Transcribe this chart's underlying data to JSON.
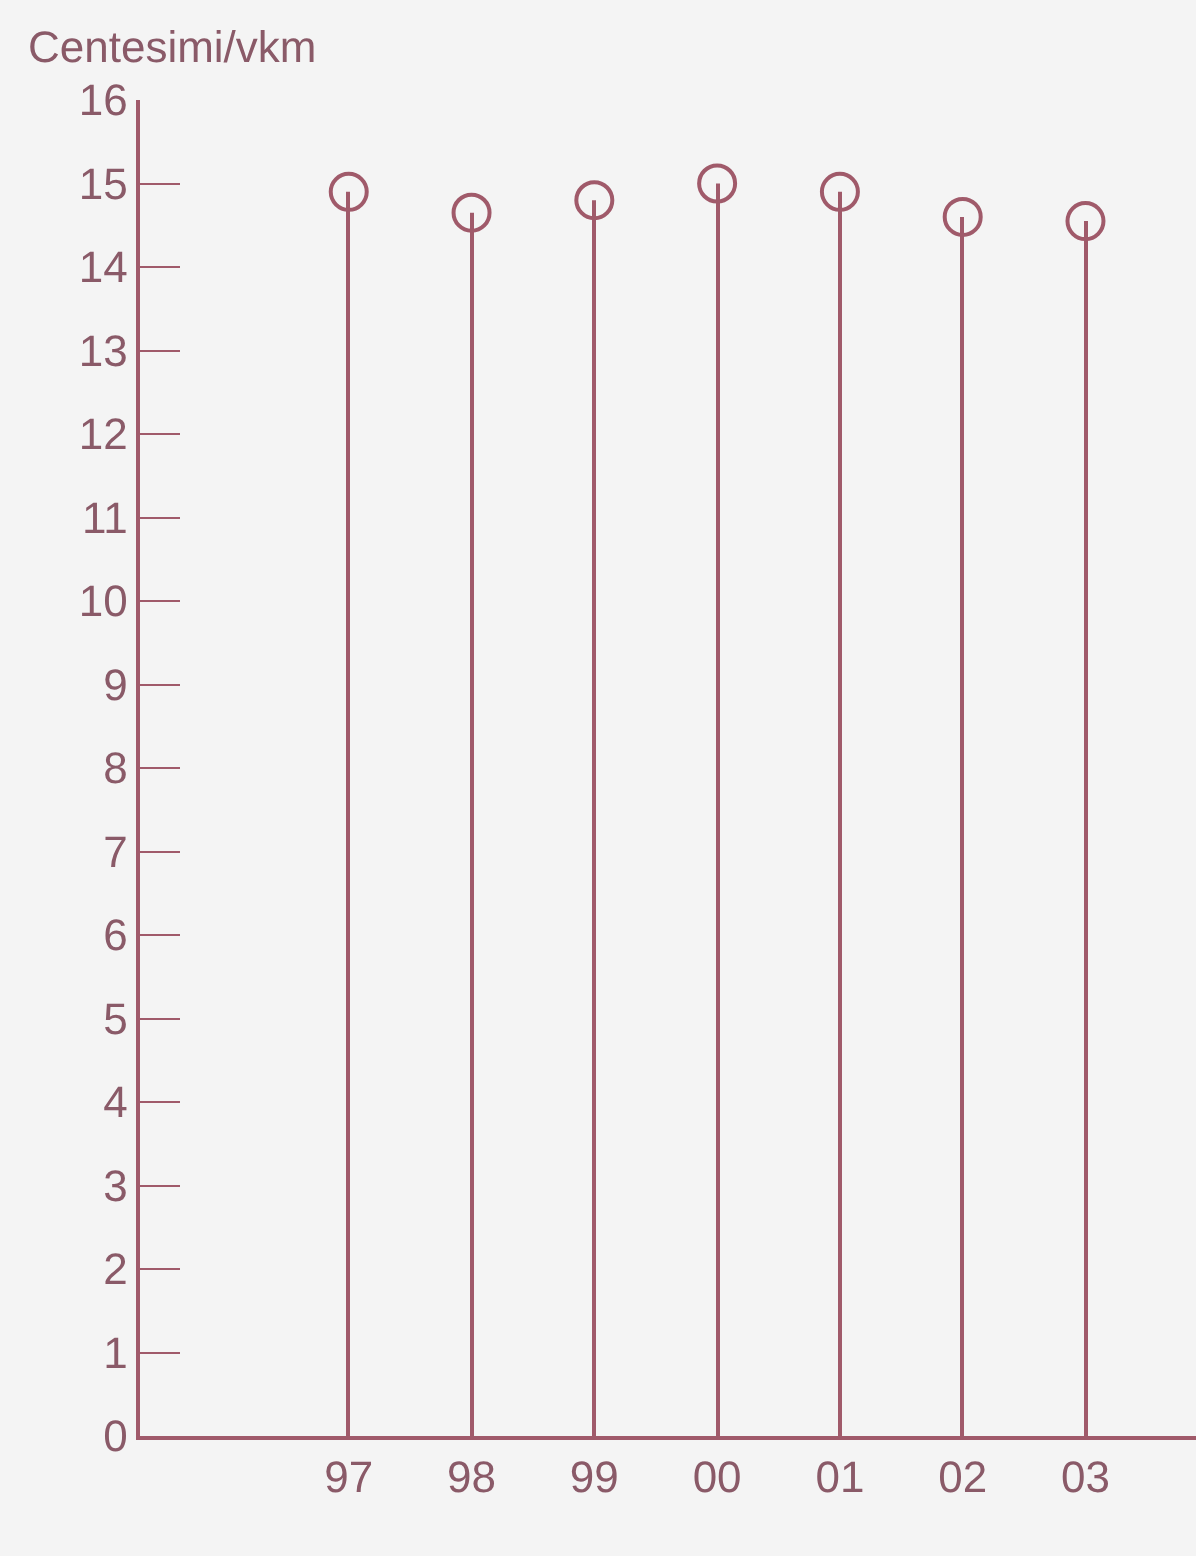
{
  "chart_data": {
    "type": "lollipop",
    "ylabel": "Centesimi/vkm",
    "categories": [
      "97",
      "98",
      "99",
      "00",
      "01",
      "02",
      "03"
    ],
    "values": [
      14.9,
      14.65,
      14.8,
      15.0,
      14.9,
      14.6,
      14.55
    ],
    "color": "#a05a6a",
    "marker": "circle",
    "ylim": [
      0,
      16
    ],
    "yticks": [
      0,
      1,
      2,
      3,
      4,
      5,
      6,
      7,
      8,
      9,
      10,
      11,
      12,
      13,
      14,
      15,
      16
    ],
    "grid": false
  }
}
